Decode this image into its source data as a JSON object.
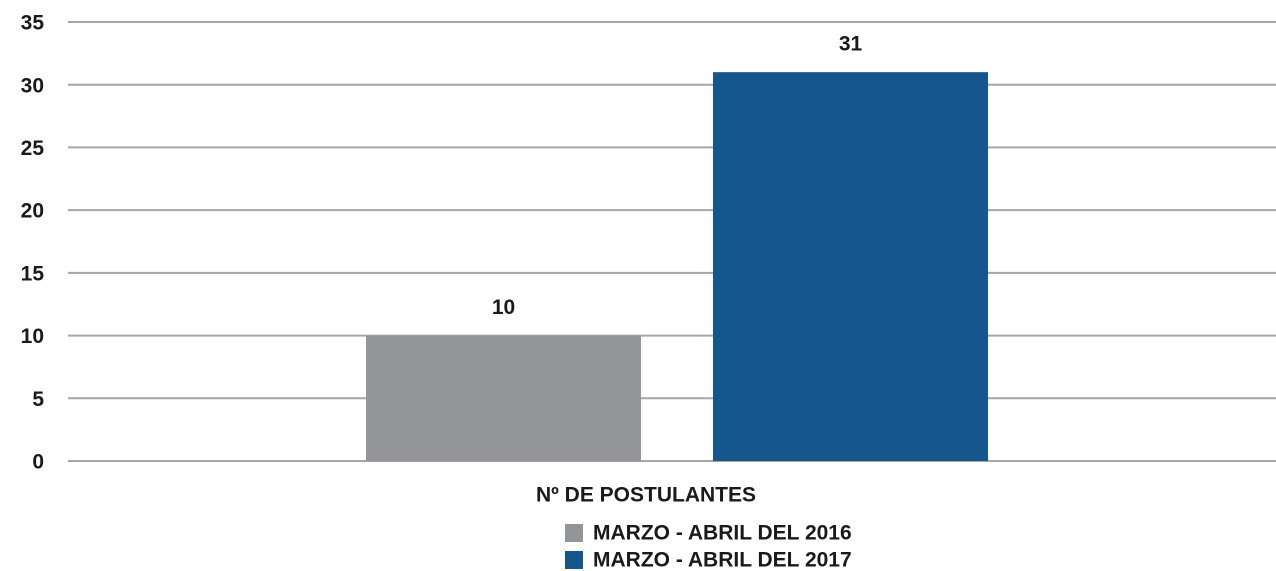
{
  "chart_data": {
    "type": "bar",
    "categories": [
      "Nº DE POSTULANTES"
    ],
    "series": [
      {
        "name": "MARZO - ABRIL DEL 2016",
        "color": "#939598",
        "values": [
          10
        ]
      },
      {
        "name": "MARZO - ABRIL DEL 2017",
        "color": "#15578c",
        "values": [
          31
        ]
      }
    ],
    "ylim": [
      0,
      35
    ],
    "yticks": [
      0,
      5,
      10,
      15,
      20,
      25,
      30,
      35
    ],
    "grid": true
  }
}
